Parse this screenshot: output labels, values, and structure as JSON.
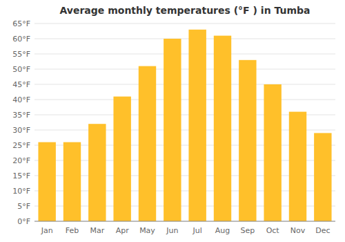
{
  "chart_data": {
    "type": "bar",
    "title": "Average monthly temperatures (°F ) in Tumba",
    "categories": [
      "Jan",
      "Feb",
      "Mar",
      "Apr",
      "May",
      "Jun",
      "Jul",
      "Aug",
      "Sep",
      "Oct",
      "Nov",
      "Dec"
    ],
    "values": [
      26,
      26,
      32,
      41,
      51,
      60,
      63,
      61,
      53,
      45,
      36,
      29
    ],
    "color": "#FFC02A",
    "ylim": [
      0,
      65
    ],
    "yticks": [
      {
        "value": 0,
        "label": "0°F"
      },
      {
        "value": 5,
        "label": "5°F"
      },
      {
        "value": 10,
        "label": "10°F"
      },
      {
        "value": 15,
        "label": "15°F"
      },
      {
        "value": 20,
        "label": "20°F"
      },
      {
        "value": 25,
        "label": "25°F"
      },
      {
        "value": 30,
        "label": "30°F"
      },
      {
        "value": 35,
        "label": "35°F"
      },
      {
        "value": 40,
        "label": "40°F"
      },
      {
        "value": 45,
        "label": "45°F"
      },
      {
        "value": 50,
        "label": "50°F"
      },
      {
        "value": 55,
        "label": "55°F"
      },
      {
        "value": 60,
        "label": "60°F"
      },
      {
        "value": 65,
        "label": "65°F"
      }
    ],
    "grid": true
  }
}
